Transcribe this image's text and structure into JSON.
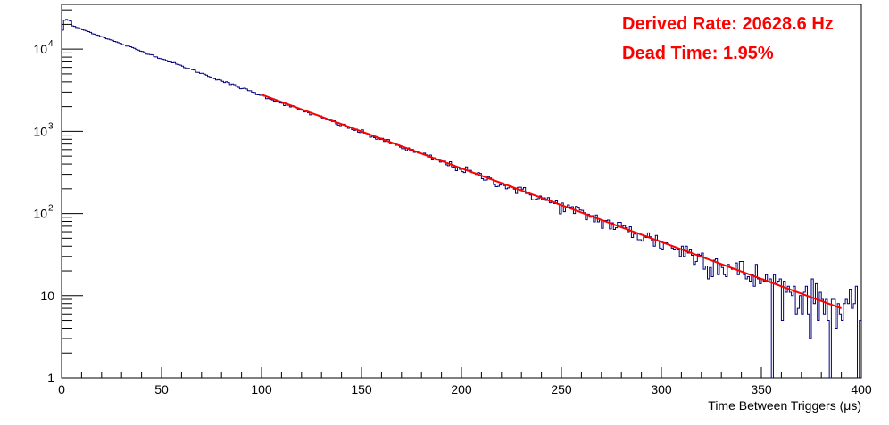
{
  "chart_data": {
    "type": "line",
    "xlabel": "Time Between Triggers (μs)",
    "ylabel": "",
    "xlim": [
      0,
      400
    ],
    "ylim": [
      1,
      35000
    ],
    "y_scale": "log",
    "grid": false,
    "x_ticks": [
      {
        "value": 0,
        "label": "0"
      },
      {
        "value": 50,
        "label": "50"
      },
      {
        "value": 100,
        "label": "100"
      },
      {
        "value": 150,
        "label": "150"
      },
      {
        "value": 200,
        "label": "200"
      },
      {
        "value": 250,
        "label": "250"
      },
      {
        "value": 300,
        "label": "300"
      },
      {
        "value": 350,
        "label": "350"
      },
      {
        "value": 400,
        "label": "400"
      }
    ],
    "y_ticks": [
      {
        "value": 1,
        "base": "1",
        "exp": ""
      },
      {
        "value": 10,
        "base": "10",
        "exp": ""
      },
      {
        "value": 100,
        "base": "10",
        "exp": "2"
      },
      {
        "value": 1000,
        "base": "10",
        "exp": "3"
      },
      {
        "value": 10000,
        "base": "10",
        "exp": "4"
      }
    ],
    "series": [
      {
        "kind": "histogram",
        "color": "#000080",
        "bin_width": 1,
        "amplitude": 21500,
        "rate_per_us": 0.02063,
        "first_bin_counts": [
          17000,
          22500,
          23000,
          22500,
          22000
        ],
        "x_range": [
          0,
          400
        ]
      },
      {
        "kind": "fit",
        "color": "#ff0000",
        "x": [
          100,
          390
        ],
        "y": [
          2800,
          7
        ]
      }
    ],
    "annotations": [
      {
        "text": "Derived Rate: 20628.6 Hz",
        "color": "#ff0000"
      },
      {
        "text": "Dead Time: 1.95%",
        "color": "#ff0000"
      }
    ]
  }
}
